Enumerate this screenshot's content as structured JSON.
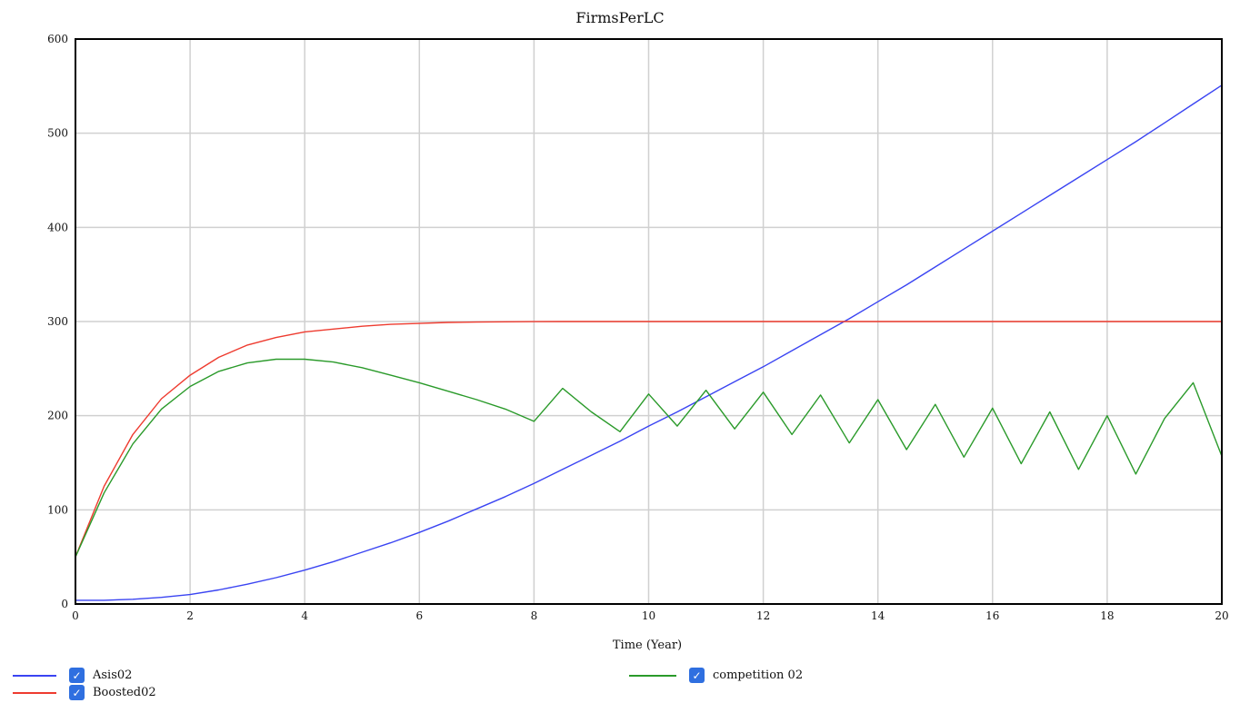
{
  "chart_data": {
    "type": "line",
    "title": "FirmsPerLC",
    "xlabel": "Time (Year)",
    "ylabel": "",
    "xlim": [
      0,
      20
    ],
    "ylim": [
      0,
      600
    ],
    "xticks": [
      0,
      2,
      4,
      6,
      8,
      10,
      12,
      14,
      16,
      18,
      20
    ],
    "yticks": [
      0,
      100,
      200,
      300,
      400,
      500,
      600
    ],
    "grid": true,
    "legend_position": "bottom",
    "x": [
      0,
      0.5,
      1,
      1.5,
      2,
      2.5,
      3,
      3.5,
      4,
      4.5,
      5,
      5.5,
      6,
      6.5,
      7,
      7.5,
      8,
      8.5,
      9,
      9.5,
      10,
      10.5,
      11,
      11.5,
      12,
      12.5,
      13,
      13.5,
      14,
      14.5,
      15,
      15.5,
      16,
      16.5,
      17,
      17.5,
      18,
      18.5,
      19,
      19.5,
      20
    ],
    "series": [
      {
        "name": "Asis02",
        "color": "#3a44f2",
        "values": [
          4,
          4,
          5,
          7,
          10,
          15,
          21,
          28,
          36,
          45,
          55,
          65,
          76,
          88,
          101,
          114,
          128,
          143,
          158,
          173,
          189,
          204,
          220,
          236,
          252,
          269,
          286,
          303,
          321,
          339,
          358,
          377,
          396,
          415,
          434,
          453,
          472,
          491,
          511,
          531,
          551
        ]
      },
      {
        "name": "Boosted02",
        "color": "#ee3b2f",
        "values": [
          50,
          125,
          180,
          218,
          243,
          262,
          275,
          283,
          289,
          292,
          295,
          297,
          298,
          299,
          299.4,
          299.7,
          299.9,
          300,
          300,
          300,
          300,
          300,
          300,
          300,
          300,
          300,
          300,
          300,
          300,
          300,
          300,
          300,
          300,
          300,
          300,
          300,
          300,
          300,
          300,
          300,
          300
        ]
      },
      {
        "name": "competition 02",
        "color": "#2a9a2a",
        "values": [
          50,
          118,
          170,
          207,
          231,
          247,
          256,
          260,
          260,
          257,
          251,
          243,
          235,
          226,
          217,
          207,
          194,
          229,
          204,
          183,
          223,
          189,
          227,
          186,
          225,
          180,
          222,
          171,
          217,
          164,
          212,
          156,
          208,
          149,
          204,
          143,
          200,
          138,
          197,
          235,
          157
        ]
      }
    ]
  },
  "legend": {
    "items": [
      {
        "label": "Asis02",
        "color": "#3a44f2"
      },
      {
        "label": "Boosted02",
        "color": "#ee3b2f"
      },
      {
        "label": "competition 02",
        "color": "#2a9a2a"
      }
    ],
    "check_mark": "✓"
  }
}
